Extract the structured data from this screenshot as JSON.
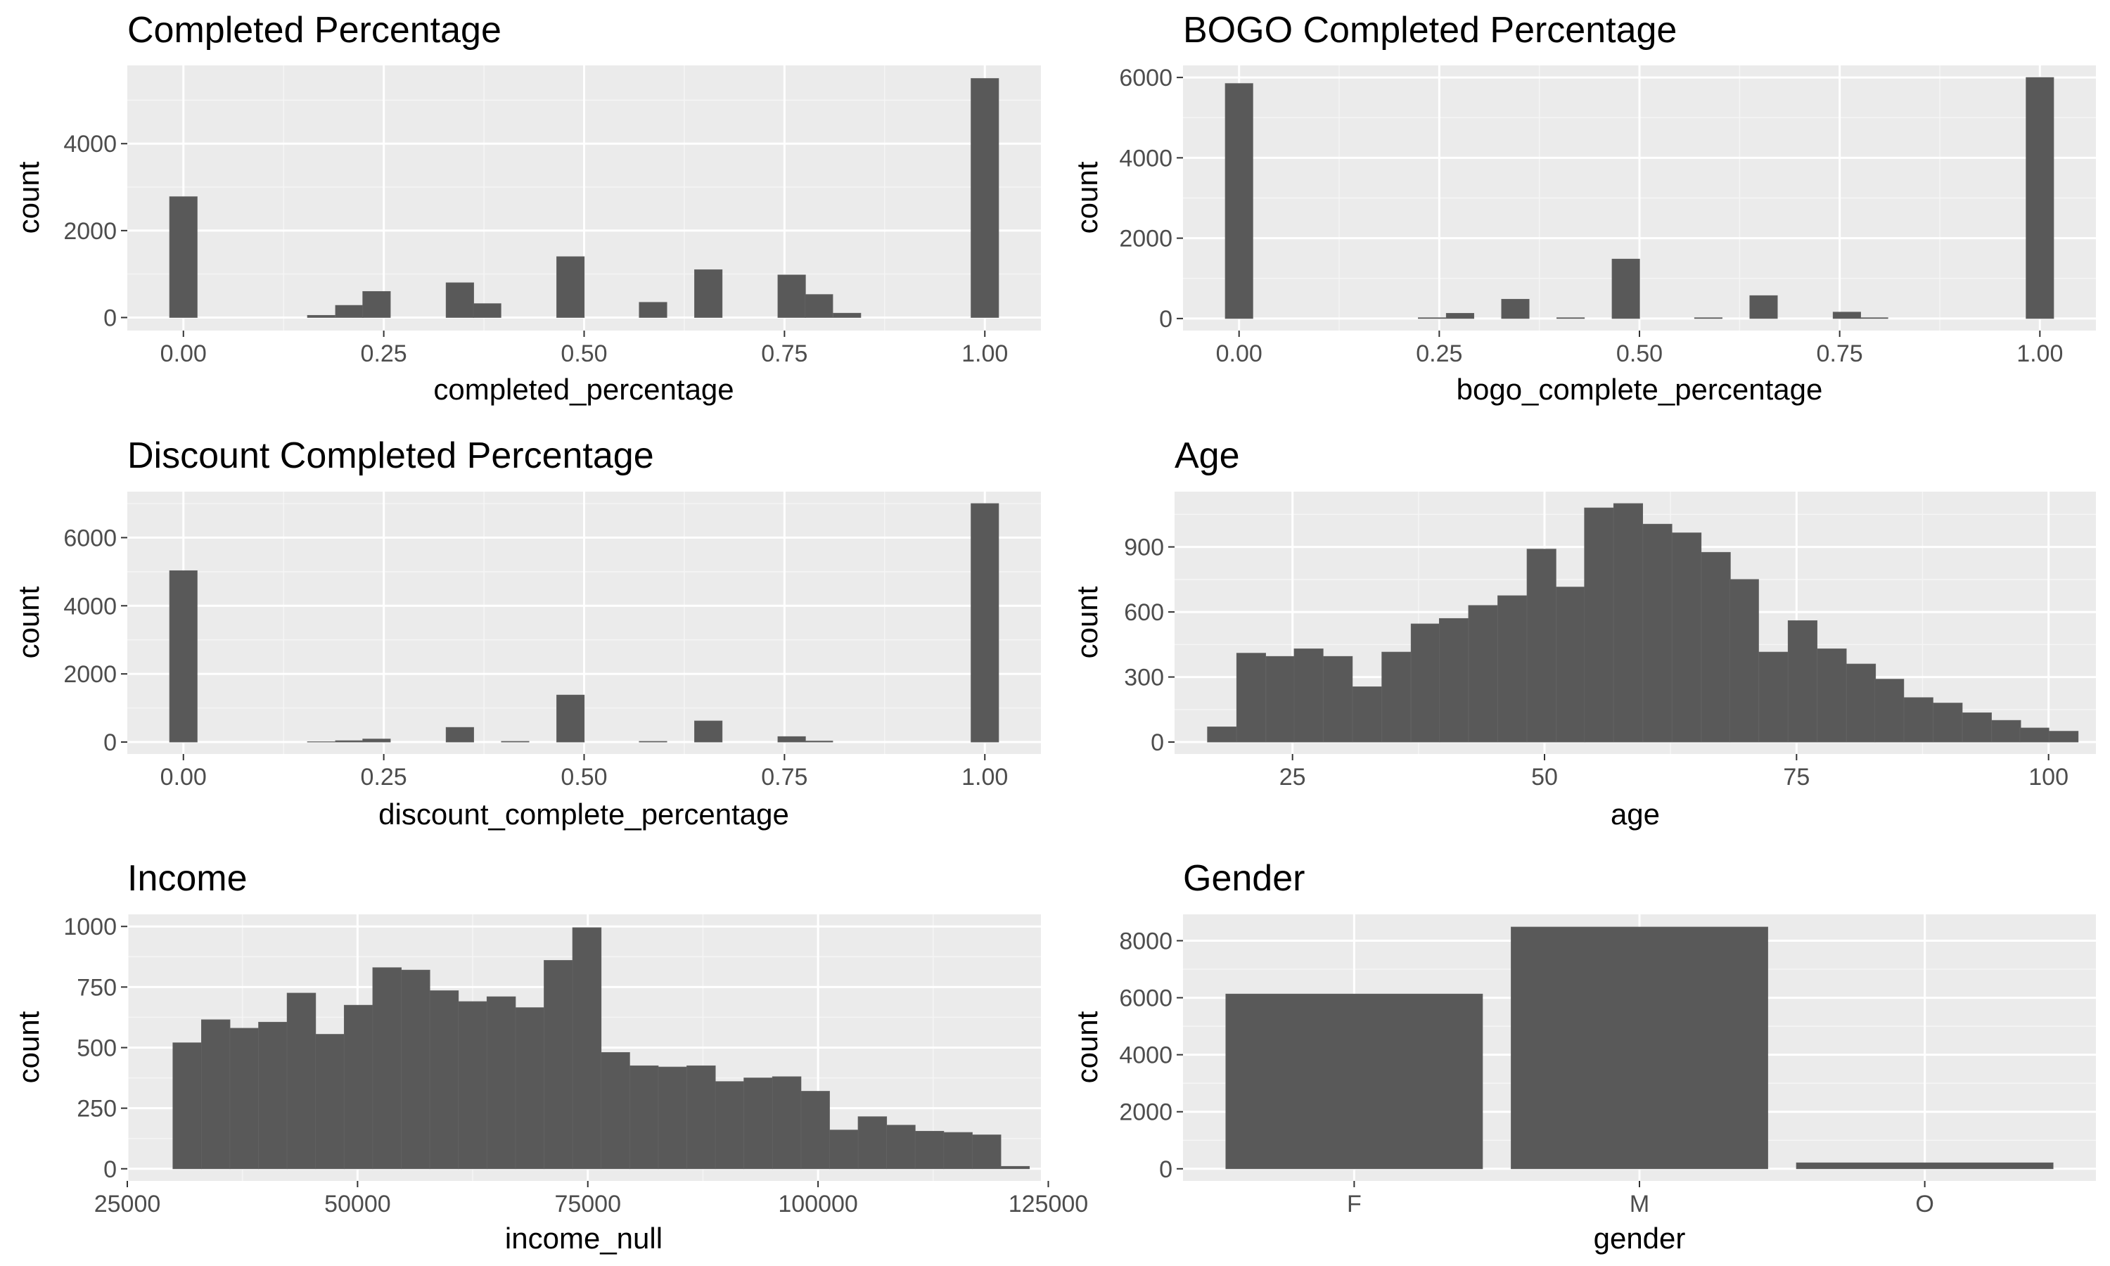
{
  "colors": {
    "panel_bg": "#ebebeb",
    "grid_major": "#ffffff",
    "grid_minor": "#f5f5f5",
    "bar": "#595959",
    "tick_text": "#4d4d4d",
    "tick_mark": "#333333"
  },
  "chart_data": [
    {
      "id": "completed",
      "type": "bar",
      "title": "Completed Percentage",
      "xlabel": "completed_percentage",
      "ylabel": "count",
      "xlim": [
        -0.07,
        1.07
      ],
      "ylim": [
        -300,
        5800
      ],
      "bin_width": 0.0345,
      "xticks": [
        0,
        0.25,
        0.5,
        0.75,
        1
      ],
      "xtick_labels": [
        "0.00",
        "0.25",
        "0.50",
        "0.75",
        "1.00"
      ],
      "yticks": [
        0,
        2000,
        4000
      ],
      "ytick_labels": [
        "0",
        "2000",
        "4000"
      ],
      "x": [
        0,
        0.138,
        0.172,
        0.207,
        0.241,
        0.276,
        0.31,
        0.345,
        0.379,
        0.414,
        0.448,
        0.483,
        0.517,
        0.552,
        0.586,
        0.621,
        0.655,
        0.69,
        0.724,
        0.759,
        0.793,
        0.828,
        0.862,
        0.897,
        0.931,
        0.966,
        1.0
      ],
      "values": [
        2780,
        0,
        50,
        280,
        600,
        0,
        0,
        800,
        320,
        0,
        0,
        1400,
        0,
        0,
        350,
        0,
        1100,
        0,
        0,
        980,
        530,
        100,
        0,
        0,
        0,
        0,
        5500
      ]
    },
    {
      "id": "bogo",
      "type": "bar",
      "title": "BOGO Completed Percentage",
      "xlabel": "bogo_complete_percentage",
      "ylabel": "count",
      "xlim": [
        -0.07,
        1.07
      ],
      "ylim": [
        -300,
        6300
      ],
      "bin_width": 0.0345,
      "xticks": [
        0,
        0.25,
        0.5,
        0.75,
        1
      ],
      "xtick_labels": [
        "0.00",
        "0.25",
        "0.50",
        "0.75",
        "1.00"
      ],
      "yticks": [
        0,
        2000,
        4000,
        6000
      ],
      "ytick_labels": [
        "0",
        "2000",
        "4000",
        "6000"
      ],
      "x": [
        0,
        0.241,
        0.276,
        0.345,
        0.414,
        0.483,
        0.552,
        0.586,
        0.655,
        0.759,
        0.793,
        1.0
      ],
      "values": [
        5850,
        20,
        130,
        480,
        20,
        1480,
        0,
        20,
        570,
        160,
        20,
        6000
      ]
    },
    {
      "id": "discount",
      "type": "bar",
      "title": "Discount Completed Percentage",
      "xlabel": "discount_complete_percentage",
      "ylabel": "count",
      "xlim": [
        -0.07,
        1.07
      ],
      "ylim": [
        -350,
        7350
      ],
      "bin_width": 0.0345,
      "xticks": [
        0,
        0.25,
        0.5,
        0.75,
        1
      ],
      "xtick_labels": [
        "0.00",
        "0.25",
        "0.50",
        "0.75",
        "1.00"
      ],
      "yticks": [
        0,
        2000,
        4000,
        6000
      ],
      "ytick_labels": [
        "0",
        "2000",
        "4000",
        "6000"
      ],
      "x": [
        0,
        0.172,
        0.207,
        0.241,
        0.345,
        0.414,
        0.483,
        0.586,
        0.655,
        0.759,
        0.793,
        1.0
      ],
      "values": [
        5030,
        10,
        40,
        90,
        430,
        20,
        1380,
        20,
        620,
        160,
        30,
        7000
      ]
    },
    {
      "id": "age",
      "type": "bar",
      "title": "Age",
      "xlabel": "age",
      "ylabel": "count",
      "xlim": [
        13.3,
        104.7
      ],
      "ylim": [
        -55,
        1155
      ],
      "bin_width": 2.88,
      "xticks": [
        25,
        50,
        75,
        100
      ],
      "xtick_labels": [
        "25",
        "50",
        "75",
        "100"
      ],
      "yticks": [
        0,
        300,
        600,
        900
      ],
      "ytick_labels": [
        "0",
        "300",
        "600",
        "900"
      ],
      "x": [
        18.0,
        20.9,
        23.8,
        26.6,
        29.5,
        32.4,
        35.3,
        38.2,
        41.0,
        43.9,
        46.8,
        49.7,
        52.6,
        55.4,
        58.3,
        61.2,
        64.1,
        67.0,
        69.8,
        72.7,
        75.6,
        78.5,
        81.4,
        84.2,
        87.1,
        90.0,
        92.9,
        95.8,
        98.6,
        101.5
      ],
      "values": [
        70,
        410,
        395,
        430,
        395,
        255,
        415,
        545,
        570,
        630,
        675,
        890,
        715,
        1080,
        1100,
        1005,
        965,
        875,
        750,
        415,
        560,
        430,
        360,
        290,
        205,
        180,
        135,
        100,
        65,
        50
      ]
    },
    {
      "id": "income",
      "type": "bar",
      "title": "Income",
      "xlabel": "income_null",
      "ylabel": "count",
      "xlim": [
        25000,
        124200
      ],
      "ylim": [
        -50,
        1050
      ],
      "bin_width": 3103,
      "xticks": [
        25000,
        50000,
        75000,
        100000,
        125000
      ],
      "xtick_labels": [
        "25000",
        "50000",
        "75000",
        "100000",
        "125000"
      ],
      "yticks": [
        0,
        250,
        500,
        750,
        1000
      ],
      "ytick_labels": [
        "0",
        "250",
        "500",
        "750",
        "1000"
      ],
      "x": [
        31500,
        34600,
        37700,
        40800,
        43900,
        47000,
        50100,
        53200,
        56300,
        59400,
        62500,
        65600,
        68700,
        71800,
        74900,
        78000,
        81100,
        84200,
        87300,
        90400,
        93500,
        96600,
        99700,
        102800,
        105900,
        109000,
        112100,
        115200,
        118300,
        121400
      ],
      "values": [
        520,
        615,
        580,
        605,
        725,
        555,
        675,
        830,
        820,
        735,
        690,
        710,
        665,
        860,
        995,
        480,
        425,
        420,
        425,
        360,
        375,
        380,
        320,
        160,
        215,
        180,
        155,
        150,
        140,
        10
      ]
    },
    {
      "id": "gender",
      "type": "bar",
      "title": "Gender",
      "xlabel": "gender",
      "ylabel": "count",
      "categories": [
        "F",
        "M",
        "O"
      ],
      "ylim": [
        -425,
        8925
      ],
      "yticks": [
        0,
        2000,
        4000,
        6000,
        8000
      ],
      "ytick_labels": [
        "0",
        "2000",
        "4000",
        "6000",
        "8000"
      ],
      "values": [
        6130,
        8480,
        210
      ]
    }
  ]
}
